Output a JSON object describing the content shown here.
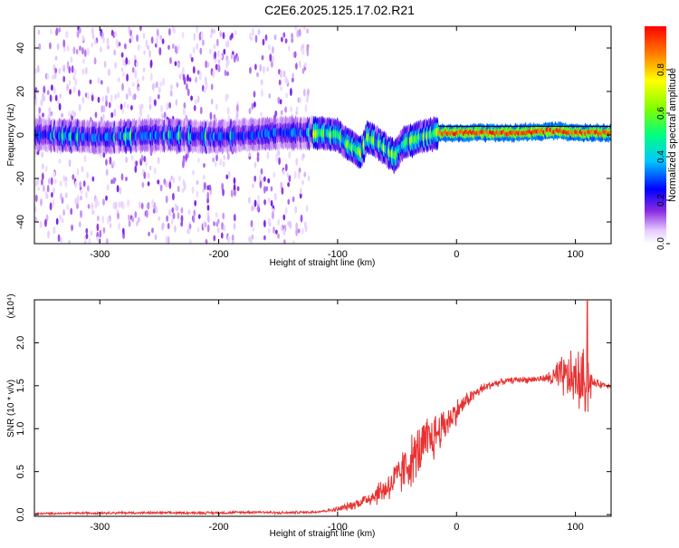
{
  "title": "C2E6.2025.125.17.02.R21",
  "chart_data": [
    {
      "type": "heatmap",
      "xlabel": "Height of straight line (km)",
      "ylabel": "Frequency (Hz)",
      "xlim": [
        -355,
        130
      ],
      "ylim": [
        -50,
        50
      ],
      "x_ticks": [
        -300,
        -200,
        -100,
        0,
        100
      ],
      "y_ticks": [
        -40,
        -20,
        0,
        20,
        40
      ],
      "colorbar": {
        "label": "Normalized spectral amplitude",
        "range": [
          0.0,
          1.0
        ],
        "ticks": [
          "0.0",
          "0.2",
          "0.4",
          "0.6",
          "0.8"
        ],
        "placement": "right"
      },
      "ridge": [
        {
          "x": -350,
          "y": 0
        },
        {
          "x": -300,
          "y": -1
        },
        {
          "x": -250,
          "y": 0
        },
        {
          "x": -200,
          "y": -1
        },
        {
          "x": -150,
          "y": 1
        },
        {
          "x": -120,
          "y": 1
        },
        {
          "x": -100,
          "y": 0
        },
        {
          "x": -90,
          "y": -5
        },
        {
          "x": -80,
          "y": -8
        },
        {
          "x": -75,
          "y": -1
        },
        {
          "x": -65,
          "y": -4
        },
        {
          "x": -52,
          "y": -10
        },
        {
          "x": -45,
          "y": -4
        },
        {
          "x": -30,
          "y": -1
        },
        {
          "x": -15,
          "y": 1
        },
        {
          "x": 0,
          "y": 1
        },
        {
          "x": 50,
          "y": 1
        },
        {
          "x": 85,
          "y": 2
        },
        {
          "x": 100,
          "y": 1
        },
        {
          "x": 130,
          "y": 1
        }
      ],
      "reference_line_y": 4,
      "noise_regions": [
        [
          -355,
          -185
        ],
        [
          -175,
          -125
        ]
      ]
    },
    {
      "type": "line",
      "xlabel": "Height of straight line (km)",
      "ylabel": "SNR (10 * v/v)",
      "y_multiplier": "(x10⁴)",
      "xlim": [
        -355,
        130
      ],
      "ylim": [
        -0.02,
        2.5
      ],
      "x_ticks": [
        -300,
        -200,
        -100,
        0,
        100
      ],
      "y_ticks": [
        "0.0",
        "0.5",
        "1.0",
        "1.5",
        "2.0"
      ],
      "series": [
        {
          "color": "#e83232",
          "x": [
            -355,
            -300,
            -250,
            -200,
            -165,
            -150,
            -120,
            -100,
            -90,
            -80,
            -70,
            -60,
            -50,
            -40,
            -30,
            -20,
            -10,
            0,
            10,
            20,
            30,
            40,
            50,
            60,
            70,
            80,
            90,
            100,
            105,
            110,
            115,
            120,
            130
          ],
          "y": [
            0.01,
            0.02,
            0.02,
            0.02,
            0.03,
            0.02,
            0.03,
            0.06,
            0.1,
            0.15,
            0.22,
            0.3,
            0.42,
            0.6,
            0.75,
            0.9,
            1.05,
            1.2,
            1.35,
            1.45,
            1.52,
            1.55,
            1.57,
            1.57,
            1.58,
            1.59,
            1.6,
            1.58,
            1.55,
            1.55,
            1.53,
            1.52,
            1.5
          ]
        }
      ],
      "noise_amplitude": [
        {
          "x": -355,
          "a": 0.015
        },
        {
          "x": -110,
          "a": 0.02
        },
        {
          "x": -80,
          "a": 0.08
        },
        {
          "x": -60,
          "a": 0.2
        },
        {
          "x": -40,
          "a": 0.35
        },
        {
          "x": -25,
          "a": 0.4
        },
        {
          "x": -10,
          "a": 0.25
        },
        {
          "x": 10,
          "a": 0.1
        },
        {
          "x": 40,
          "a": 0.04
        },
        {
          "x": 75,
          "a": 0.05
        },
        {
          "x": 85,
          "a": 0.25
        },
        {
          "x": 100,
          "a": 0.4
        },
        {
          "x": 110,
          "a": 0.5
        },
        {
          "x": 115,
          "a": 0.06
        },
        {
          "x": 130,
          "a": 0.03
        }
      ],
      "spike": {
        "x": 110,
        "y": 2.5
      }
    }
  ]
}
